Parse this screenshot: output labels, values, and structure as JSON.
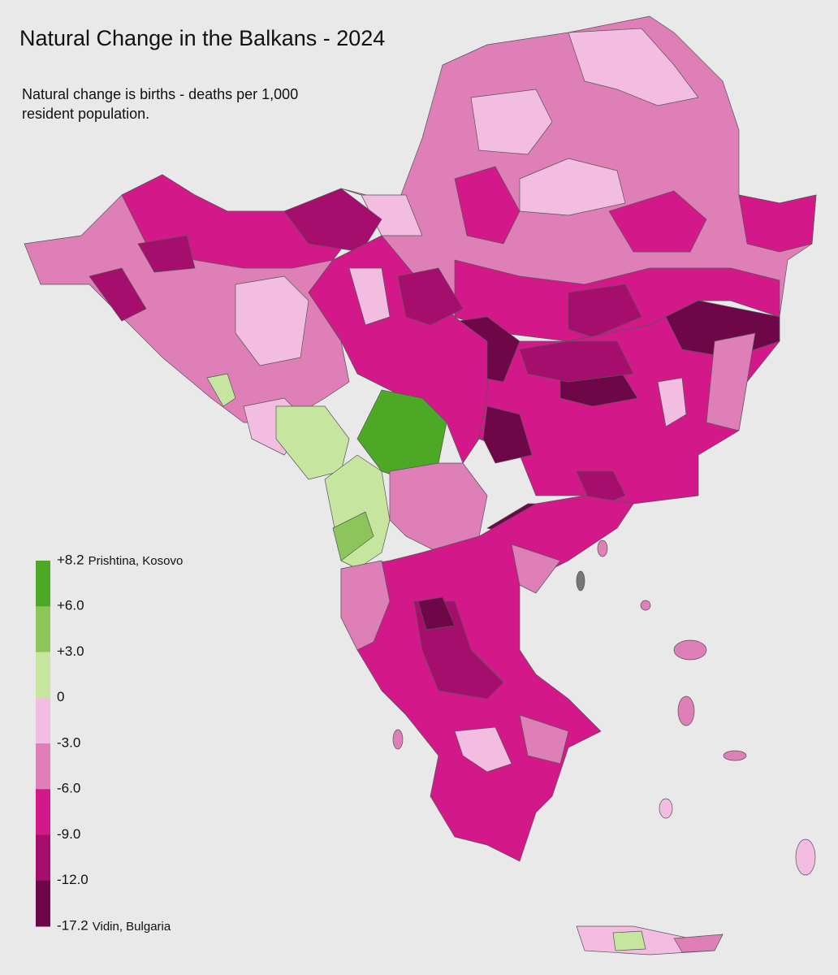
{
  "header": {
    "title": "Natural Change in the Balkans - 2024",
    "subtitle_lines": [
      "Natural change is births - deaths per 1,000",
      "resident population."
    ]
  },
  "legend": {
    "stops": [
      {
        "label": "+8.2",
        "note": "Prishtina, Kosovo"
      },
      {
        "label": "+6.0"
      },
      {
        "label": "+3.0"
      },
      {
        "label": "0"
      },
      {
        "label": "-3.0"
      },
      {
        "label": "-6.0"
      },
      {
        "label": "-9.0"
      },
      {
        "label": "-12.0"
      },
      {
        "label": "-17.2",
        "note": "Vidin, Bulgaria"
      }
    ],
    "colors": [
      "#4da825",
      "#8cc65a",
      "#c6e6a0",
      "#f2bde0",
      "#de7fb8",
      "#d3198a",
      "#a50e6c",
      "#6e0747"
    ]
  }
}
